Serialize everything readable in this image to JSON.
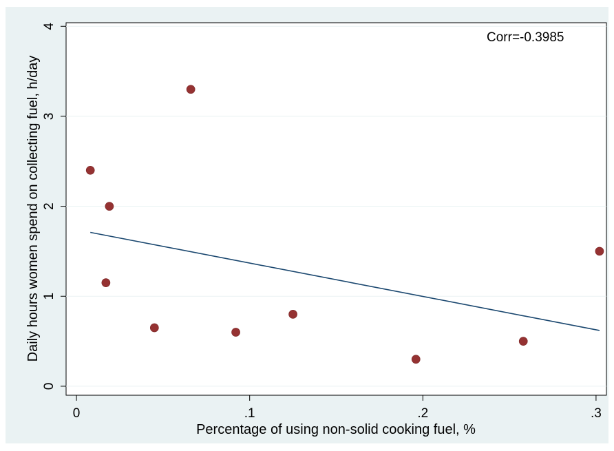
{
  "colors": {
    "outer_background": "#eaf2f3",
    "plot_background": "#ffffff",
    "grid": "#eaf2f3",
    "point": "#953232",
    "fit_line": "#1a476f",
    "text": "#000000"
  },
  "chart_data": {
    "type": "scatter",
    "xlabel": "Percentage of using non-solid cooking fuel, %",
    "ylabel": "Daily hours women spend on collecting fuel, h/day",
    "xlim": [
      -0.006,
      0.306
    ],
    "ylim": [
      -0.1,
      4.04
    ],
    "x_ticks": [
      0,
      0.1,
      0.2,
      0.3
    ],
    "x_tick_labels": [
      "0",
      ".1",
      ".2",
      ".3"
    ],
    "y_ticks": [
      0,
      1,
      2,
      3,
      4
    ],
    "y_tick_labels": [
      "0",
      "1",
      "2",
      "3",
      "4"
    ],
    "grid": true,
    "annotation": "Corr=-0.3985",
    "points": [
      {
        "x": 0.008,
        "y": 2.4
      },
      {
        "x": 0.017,
        "y": 1.15
      },
      {
        "x": 0.019,
        "y": 2.0
      },
      {
        "x": 0.045,
        "y": 0.65
      },
      {
        "x": 0.066,
        "y": 3.3
      },
      {
        "x": 0.092,
        "y": 0.6
      },
      {
        "x": 0.125,
        "y": 0.8
      },
      {
        "x": 0.196,
        "y": 0.3
      },
      {
        "x": 0.258,
        "y": 0.5
      },
      {
        "x": 0.302,
        "y": 1.5
      }
    ],
    "fit_line": {
      "x": [
        0.008,
        0.302
      ],
      "y": [
        1.71,
        0.62
      ]
    }
  }
}
